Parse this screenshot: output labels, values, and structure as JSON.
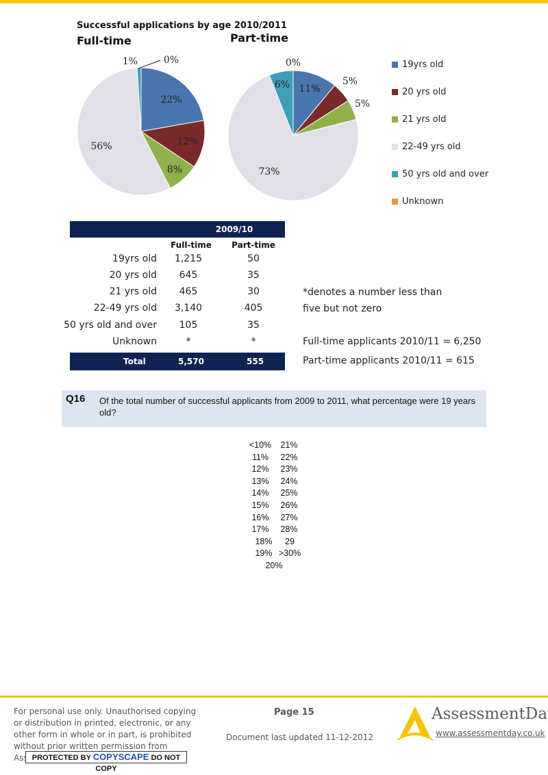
{
  "chart": {
    "title": "Successful applications by age  2010/2011",
    "fulltime_title": "Full-time",
    "parttime_title": "Part-time",
    "legend": [
      {
        "label": "19yrs old",
        "color": "#4a75ad"
      },
      {
        "label": "20 yrs old",
        "color": "#7a2a2a"
      },
      {
        "label": "21 yrs old",
        "color": "#8fb04a"
      },
      {
        "label": "22-49 yrs old",
        "color": "#e1dfe7"
      },
      {
        "label": "50 yrs old and over",
        "color": "#3f9fb8"
      },
      {
        "label": "Unknown",
        "color": "#e39a45"
      }
    ]
  },
  "chart_data": [
    {
      "type": "pie",
      "title": "Full-time",
      "categories": [
        "19yrs old",
        "20 yrs old",
        "21 yrs old",
        "22-49 yrs old",
        "50 yrs old and over",
        "Unknown"
      ],
      "values": [
        22,
        12,
        8,
        56,
        1,
        0
      ],
      "labels": [
        "22%",
        "12%",
        "8%",
        "56%",
        "1%",
        "0%"
      ]
    },
    {
      "type": "pie",
      "title": "Part-time",
      "categories": [
        "19yrs old",
        "20 yrs old",
        "21 yrs old",
        "22-49 yrs old",
        "50 yrs old and over",
        "Unknown"
      ],
      "values": [
        11,
        5,
        5,
        73,
        6,
        0
      ],
      "labels": [
        "11%",
        "5%",
        "5%",
        "73%",
        "6%",
        "0%"
      ]
    }
  ],
  "table": {
    "year": "2009/10",
    "col_fulltime": "Full-time",
    "col_parttime": "Part-time",
    "rows": [
      {
        "label": "19yrs old",
        "ft": "1,215",
        "pt": "50"
      },
      {
        "label": "20 yrs old",
        "ft": "645",
        "pt": "35"
      },
      {
        "label": "21 yrs old",
        "ft": "465",
        "pt": "30"
      },
      {
        "label": "22-49 yrs old",
        "ft": "3,140",
        "pt": "405"
      },
      {
        "label": "50 yrs old and over",
        "ft": "105",
        "pt": "35"
      },
      {
        "label": "Unknown",
        "ft": "*",
        "pt": "*"
      }
    ],
    "total_label": "Total",
    "total_ft": "5,570",
    "total_pt": "555"
  },
  "notes": {
    "line1": "*denotes a number less than",
    "line2": "five but not zero",
    "ft_applicants": "Full-time applicants 2010/11 = 6,250",
    "pt_applicants": "Part-time applicants 2010/11 = 615"
  },
  "question": {
    "number": "Q16",
    "text": "Of the total number of successful applicants from 2009 to 2011, what percentage were 19 years old?"
  },
  "answers": [
    [
      "<10%",
      "21%"
    ],
    [
      "11%",
      "22%"
    ],
    [
      "12%",
      "23%"
    ],
    [
      "13%",
      "24%"
    ],
    [
      "14%",
      "25%"
    ],
    [
      "15%",
      "26%"
    ],
    [
      "16%",
      "27%"
    ],
    [
      "17%",
      "28%"
    ],
    [
      "18%",
      "29"
    ],
    [
      "19%",
      ">30%"
    ],
    [
      "20%"
    ]
  ],
  "footer": {
    "disclaimer": "For personal use only. Unauthorised copying or distribution in printed, electronic, or any other form in whole or in part, is prohibited without prior written permission from AssessmentDay.",
    "copyscape_pre": "PROTECTED BY",
    "copyscape_brand": "COPYSCAPE",
    "copyscape_post": "DO NOT COPY",
    "page": "Page 15",
    "updated": "Document last updated 11-12-2012",
    "brand": "AssessmentDay",
    "url": "www.assessmentday.co.uk"
  }
}
